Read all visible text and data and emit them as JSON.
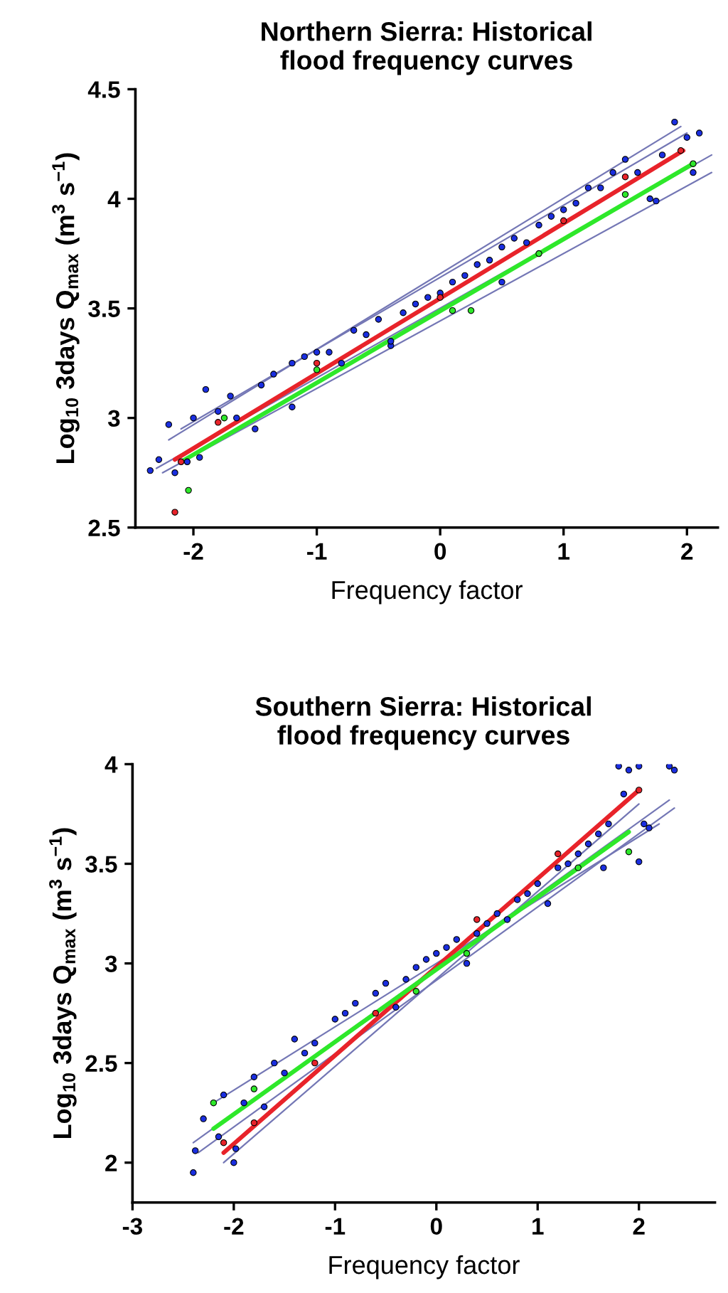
{
  "chart_data": [
    {
      "type": "scatter",
      "title": "Northern Sierra: Historical\nflood frequency curves",
      "xlabel": "Frequency factor",
      "ylabel": "Log$_{10}$ 3days Q$_{max}$ (m$^{3}$ s$^{−1}$)",
      "xlim": [
        -2.47,
        2.25
      ],
      "ylim": [
        2.5,
        4.5
      ],
      "xticks": [
        -2,
        -1,
        0,
        1,
        2
      ],
      "yticks": [
        2.5,
        3,
        3.5,
        4,
        4.5
      ],
      "grid": false,
      "legend": false,
      "series": [
        {
          "type": "line",
          "marker": "none",
          "color": "#7477b5",
          "x": [
            -2.2,
            1.95
          ],
          "values": [
            2.9,
            4.33
          ]
        },
        {
          "type": "line",
          "marker": "none",
          "color": "#7477b5",
          "x": [
            -2.3,
            2.2
          ],
          "values": [
            2.77,
            4.2
          ]
        },
        {
          "type": "line",
          "marker": "none",
          "color": "#7477b5",
          "x": [
            -2.1,
            2.0
          ],
          "values": [
            2.95,
            4.3
          ]
        },
        {
          "type": "line",
          "marker": "none",
          "color": "#7477b5",
          "x": [
            -2.25,
            2.2
          ],
          "values": [
            2.75,
            4.12
          ]
        },
        {
          "marker": "circle",
          "color": "#1a2ee0",
          "x": [
            -2.35,
            -2.28,
            -2.2,
            -2.15,
            -2.05,
            -2.0,
            -1.95,
            -1.9,
            -1.8,
            -1.7,
            -1.65,
            -1.5,
            -1.45,
            -1.35,
            -1.2,
            -1.2,
            -1.1,
            -1.0,
            -0.9,
            -0.8,
            -0.7,
            -0.6,
            -0.5,
            -0.4,
            -0.3,
            -0.2,
            -0.1,
            0.0,
            0.1,
            0.2,
            0.3,
            0.4,
            0.5,
            0.6,
            0.7,
            0.8,
            0.9,
            1.0,
            1.1,
            1.2,
            1.3,
            1.4,
            1.5,
            1.6,
            1.7,
            1.8,
            1.9,
            2.0,
            2.1,
            2.05,
            1.75,
            -0.4,
            0.5
          ],
          "values": [
            2.76,
            2.81,
            2.97,
            2.75,
            2.8,
            3.0,
            2.82,
            3.13,
            3.03,
            3.1,
            3.0,
            2.95,
            3.15,
            3.2,
            3.25,
            3.05,
            3.28,
            3.3,
            3.3,
            3.25,
            3.4,
            3.38,
            3.45,
            3.33,
            3.48,
            3.52,
            3.55,
            3.57,
            3.62,
            3.65,
            3.7,
            3.72,
            3.78,
            3.82,
            3.8,
            3.88,
            3.92,
            3.95,
            3.98,
            4.05,
            4.05,
            4.12,
            4.18,
            4.12,
            4.0,
            4.2,
            4.35,
            4.28,
            4.3,
            4.12,
            3.99,
            3.35,
            3.62
          ]
        },
        {
          "type": "line",
          "marker": "none",
          "color": "#e8232a",
          "x": [
            -2.15,
            1.97
          ],
          "values": [
            2.81,
            4.22
          ]
        },
        {
          "type": "line",
          "marker": "none",
          "color": "#2ee82a",
          "x": [
            -2.1,
            2.05
          ],
          "values": [
            2.8,
            4.16
          ]
        },
        {
          "marker": "circle",
          "color": "#e8232a",
          "x": [
            -2.15,
            -2.1,
            -1.8,
            -1.0,
            0,
            1.0,
            1.5,
            1.95
          ],
          "values": [
            2.57,
            2.8,
            2.98,
            3.25,
            3.55,
            3.9,
            4.1,
            4.22
          ]
        },
        {
          "marker": "circle",
          "color": "#2ee82a",
          "x": [
            -2.04,
            -1.75,
            -1,
            0.1,
            0.25,
            0.8,
            1.5,
            2.05
          ],
          "values": [
            2.67,
            3.0,
            3.22,
            3.49,
            3.49,
            3.75,
            4.02,
            4.16
          ]
        }
      ]
    },
    {
      "type": "scatter",
      "title": "Southern Sierra: Historical\nflood frequency curves",
      "xlabel": "Frequency factor",
      "ylabel": "Log$_{10}$ 3days Q$_{max}$ (m$^{3}$ s$^{−1}$)",
      "xlim": [
        -3,
        2.75
      ],
      "ylim": [
        1.8,
        4
      ],
      "xticks": [
        -3,
        -2,
        -1,
        0,
        1,
        2
      ],
      "yticks": [
        2,
        2.5,
        3,
        3.5,
        4
      ],
      "grid": false,
      "legend": false,
      "series": [
        {
          "type": "line",
          "marker": "none",
          "color": "#7477b5",
          "x": [
            -2.4,
            2.3
          ],
          "values": [
            2.1,
            3.82
          ]
        },
        {
          "type": "line",
          "marker": "none",
          "color": "#7477b5",
          "x": [
            -2.35,
            2.35
          ],
          "values": [
            2.05,
            3.78
          ]
        },
        {
          "type": "line",
          "marker": "none",
          "color": "#7477b5",
          "x": [
            -2.2,
            2.2
          ],
          "values": [
            2.3,
            3.7
          ]
        },
        {
          "type": "line",
          "marker": "none",
          "color": "#7477b5",
          "x": [
            -2.1,
            2.0
          ],
          "values": [
            2.0,
            3.8
          ]
        },
        {
          "marker": "circle",
          "color": "#1a2ee0",
          "x": [
            -2.4,
            -2.38,
            -2.3,
            -2.15,
            -2.1,
            -2.0,
            -1.98,
            -1.9,
            -1.8,
            -1.7,
            -1.6,
            -1.5,
            -1.4,
            -1.3,
            -1.2,
            -1.0,
            -0.9,
            -0.8,
            -0.6,
            -0.5,
            -0.4,
            -0.3,
            -0.2,
            -0.1,
            0,
            0.1,
            0.2,
            0.3,
            0.4,
            0.5,
            0.6,
            0.7,
            0.8,
            0.9,
            1.0,
            1.1,
            1.2,
            1.3,
            1.4,
            1.5,
            1.6,
            1.65,
            1.7,
            1.8,
            1.9,
            2.0,
            2.05,
            2.1,
            2.3,
            2.35,
            2.0,
            1.85
          ],
          "values": [
            1.95,
            2.06,
            2.22,
            2.13,
            2.34,
            2.0,
            2.07,
            2.3,
            2.43,
            2.28,
            2.5,
            2.45,
            2.62,
            2.55,
            2.6,
            2.72,
            2.75,
            2.8,
            2.85,
            2.9,
            2.78,
            2.92,
            2.98,
            3.02,
            3.05,
            3.08,
            3.12,
            3.0,
            3.15,
            3.2,
            3.25,
            3.22,
            3.32,
            3.35,
            3.4,
            3.3,
            3.48,
            3.5,
            3.55,
            3.6,
            3.65,
            3.48,
            3.7,
            3.99,
            3.97,
            3.51,
            3.7,
            3.68,
            3.99,
            3.97,
            3.99,
            3.85
          ]
        },
        {
          "type": "line",
          "marker": "none",
          "color": "#e8232a",
          "x": [
            -2.1,
            2.0
          ],
          "values": [
            2.05,
            3.87
          ]
        },
        {
          "type": "line",
          "marker": "none",
          "color": "#2ee82a",
          "x": [
            -2.2,
            1.9
          ],
          "values": [
            2.17,
            3.66
          ]
        },
        {
          "marker": "circle",
          "color": "#e8232a",
          "x": [
            -2.1,
            -1.8,
            -1.2,
            -0.6,
            0.4,
            1.2,
            2.0
          ],
          "values": [
            2.1,
            2.2,
            2.5,
            2.75,
            3.22,
            3.55,
            3.87
          ]
        },
        {
          "marker": "circle",
          "color": "#2ee82a",
          "x": [
            -2.2,
            -1.8,
            -0.2,
            0.3,
            1.4,
            1.9
          ],
          "values": [
            2.3,
            2.37,
            2.86,
            3.05,
            3.48,
            3.56
          ]
        }
      ]
    }
  ]
}
